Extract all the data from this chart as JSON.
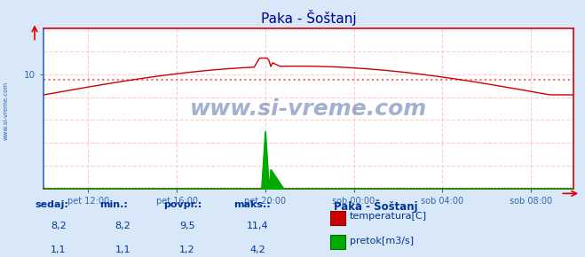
{
  "title": "Paka - Šoštanj",
  "bg_color": "#d8e8f8",
  "plot_bg_color": "#ffffff",
  "grid_color": "#ffcccc",
  "border_color": "#dd0000",
  "n_points": 288,
  "x_ticks": [
    24,
    72,
    120,
    168,
    216,
    264
  ],
  "x_tick_labels": [
    "pet 12:00",
    "pet 16:00",
    "pet 20:00",
    "sob 00:00",
    "sob 04:00",
    "sob 08:00"
  ],
  "temp_color": "#cc0000",
  "flow_color": "#00aa00",
  "avg_temp_color": "#ff6666",
  "avg_flow_color": "#0000cc",
  "temp_avg": 9.5,
  "flow_avg": 1.2,
  "temp_min": 8.2,
  "temp_max": 11.4,
  "flow_min": 1.1,
  "flow_max": 4.2,
  "temp_sedaj": 8.2,
  "flow_sedaj": 1.1,
  "y_min": 0.0,
  "y_max": 14.0,
  "ytick_val": 10,
  "watermark": "www.si-vreme.com",
  "watermark_color": "#1a3a8a",
  "sidebar_text": "www.si-vreme.com",
  "legend_title": "Paka - Šoštanj",
  "temp_label": "temperatura[C]",
  "flow_label": "pretok[m3/s]",
  "table_headers": [
    "sedaj:",
    "min.:",
    "povpr.:",
    "maks.:"
  ],
  "temp_row": [
    "8,2",
    "8,2",
    "9,5",
    "11,4"
  ],
  "flow_row": [
    "1,1",
    "1,1",
    "1,2",
    "4,2"
  ]
}
